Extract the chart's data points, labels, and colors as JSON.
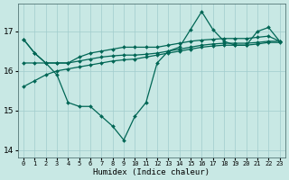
{
  "xlabel": "Humidex (Indice chaleur)",
  "x": [
    0,
    1,
    2,
    3,
    4,
    5,
    6,
    7,
    8,
    9,
    10,
    11,
    12,
    13,
    14,
    15,
    16,
    17,
    18,
    19,
    20,
    21,
    22,
    23
  ],
  "line_main": [
    16.8,
    16.45,
    16.2,
    15.9,
    15.2,
    15.1,
    15.1,
    14.85,
    14.6,
    14.25,
    14.85,
    15.2,
    16.2,
    16.5,
    16.6,
    17.05,
    17.5,
    17.05,
    16.75,
    16.65,
    16.65,
    17.0,
    17.1,
    16.75
  ],
  "line_upper": [
    16.8,
    16.45,
    16.2,
    16.2,
    16.2,
    16.35,
    16.45,
    16.5,
    16.55,
    16.6,
    16.6,
    16.6,
    16.6,
    16.65,
    16.7,
    16.75,
    16.78,
    16.8,
    16.82,
    16.82,
    16.82,
    16.85,
    16.88,
    16.75
  ],
  "line_mid": [
    16.2,
    16.2,
    16.2,
    16.2,
    16.2,
    16.25,
    16.3,
    16.35,
    16.38,
    16.4,
    16.4,
    16.42,
    16.45,
    16.5,
    16.55,
    16.6,
    16.65,
    16.68,
    16.7,
    16.7,
    16.7,
    16.72,
    16.75,
    16.75
  ],
  "line_lower": [
    15.6,
    15.75,
    15.9,
    16.0,
    16.05,
    16.1,
    16.15,
    16.2,
    16.25,
    16.28,
    16.3,
    16.35,
    16.4,
    16.45,
    16.5,
    16.55,
    16.6,
    16.63,
    16.65,
    16.65,
    16.65,
    16.68,
    16.72,
    16.72
  ],
  "ylim": [
    13.8,
    17.7
  ],
  "yticks": [
    14,
    15,
    16,
    17
  ],
  "xticks": [
    0,
    1,
    2,
    3,
    4,
    5,
    6,
    7,
    8,
    9,
    10,
    11,
    12,
    13,
    14,
    15,
    16,
    17,
    18,
    19,
    20,
    21,
    22,
    23
  ],
  "bg_color": "#c8e8e4",
  "line_color": "#006655",
  "grid_color": "#a0cccc"
}
